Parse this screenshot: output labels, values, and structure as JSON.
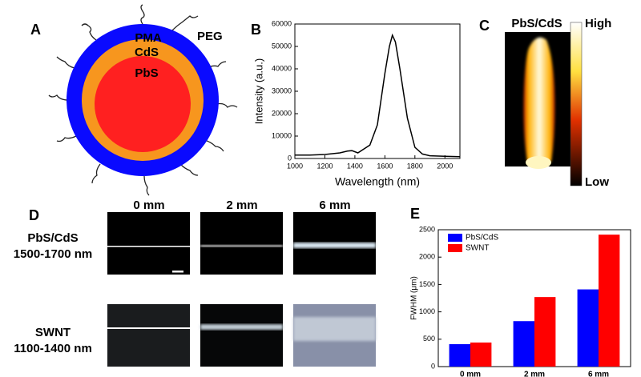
{
  "panel_labels": [
    "A",
    "B",
    "C",
    "D",
    "E"
  ],
  "panel_a": {
    "labels": [
      "PEG",
      "PMA",
      "CdS",
      "PbS"
    ]
  },
  "panel_c": {
    "title": "PbS/CdS",
    "high": "High",
    "low": "Low"
  },
  "panel_d": {
    "columns": [
      "0 mm",
      "2 mm",
      "6 mm"
    ],
    "rows": [
      [
        "PbS/CdS",
        "1500-1700 nm"
      ],
      [
        "SWNT",
        "1100-1400 nm"
      ]
    ]
  },
  "chart_data": [
    {
      "type": "line",
      "xlabel": "Wavelength (nm)",
      "ylabel": "Intensity (a.u.)",
      "x": [
        1000,
        1100,
        1200,
        1300,
        1350,
        1380,
        1420,
        1500,
        1550,
        1600,
        1630,
        1650,
        1670,
        1700,
        1750,
        1800,
        1850,
        1900,
        2000,
        2100
      ],
      "series": [
        {
          "color": "#000000",
          "values": [
            1500,
            1500,
            1800,
            2500,
            3300,
            3500,
            2500,
            6000,
            15000,
            38000,
            50000,
            55000,
            52000,
            40000,
            18000,
            5000,
            2000,
            1200,
            1000,
            800
          ]
        }
      ],
      "xlim": [
        1000,
        2100
      ],
      "xticks": [
        1000,
        1200,
        1400,
        1600,
        1800,
        2000
      ],
      "ylim": [
        0,
        60000
      ],
      "yticks": [
        0,
        10000,
        20000,
        30000,
        40000,
        50000,
        60000
      ]
    },
    {
      "type": "bar",
      "ylabel": "FWHM (μm)",
      "categories": [
        "0 mm",
        "2 mm",
        "6 mm"
      ],
      "series": [
        {
          "name": "PbS/CdS",
          "color": "#0000ff",
          "values": [
            410,
            830,
            1410
          ]
        },
        {
          "name": "SWNT",
          "color": "#ff0000",
          "values": [
            440,
            1270,
            2410
          ]
        }
      ],
      "ylim": [
        0,
        2500
      ],
      "yticks": [
        0,
        500,
        1000,
        1500,
        2000,
        2500
      ],
      "legend": "upper left"
    }
  ]
}
